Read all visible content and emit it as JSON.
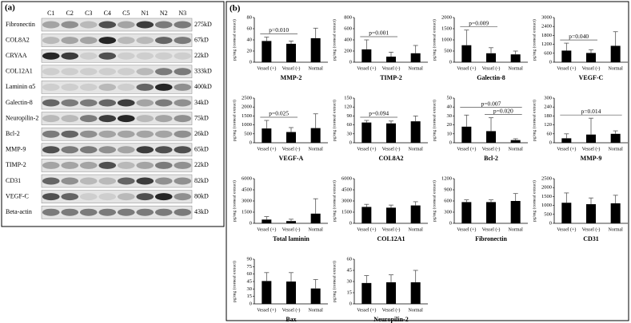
{
  "panels": {
    "a": "(a)",
    "b": "(b)"
  },
  "blot": {
    "lanes": [
      "C1",
      "C2",
      "C3",
      "C4",
      "C5",
      "N1",
      "N2",
      "N3"
    ],
    "rows": [
      {
        "name": "Fibronectin",
        "size": "275kD"
      },
      {
        "name": "COL8A2",
        "size": "67kD"
      },
      {
        "name": "CRYAA",
        "size": "22kD"
      },
      {
        "name": "COL12A1",
        "size": "333kD"
      },
      {
        "name": "Laminin α5",
        "size": "400kD"
      },
      {
        "name": "Galectin-8",
        "size": "34kD"
      },
      {
        "name": "Neuropilin-2",
        "size": "75kD"
      },
      {
        "name": "Bcl-2",
        "size": "26kD"
      },
      {
        "name": "MMP-9",
        "size": "65kD"
      },
      {
        "name": "TIMP-2",
        "size": "22kD"
      },
      {
        "name": "CD31",
        "size": "82kD"
      },
      {
        "name": "VEGF-C",
        "size": "80kD"
      },
      {
        "name": "Beta-actin",
        "size": "43kD"
      }
    ]
  },
  "chart_data": [
    {
      "type": "bar",
      "title": "MMP-2",
      "y_label": "pg/mg (corneal extract)",
      "categories": [
        "Vessel (+)",
        "Vessel (-)",
        "Normal"
      ],
      "values": [
        38,
        33,
        43
      ],
      "errors": [
        7,
        5,
        18
      ],
      "color": "#000000",
      "ylim": [
        0,
        80
      ],
      "yticks": [
        0,
        20,
        40,
        60,
        80
      ],
      "annotations": [
        {
          "text": "p=0.010",
          "between": [
            "Vessel (+)",
            "Vessel (-)"
          ]
        }
      ]
    },
    {
      "type": "bar",
      "title": "TIMP-2",
      "y_label": "pg/mg (corneal extract)",
      "categories": [
        "Vessel (+)",
        "Vessel (-)",
        "Normal"
      ],
      "values": [
        230,
        100,
        160
      ],
      "errors": [
        170,
        80,
        140
      ],
      "color": "#000000",
      "ylim": [
        0,
        800
      ],
      "yticks": [
        0,
        200,
        400,
        600,
        800
      ],
      "annotations": [
        {
          "text": "p=0.001",
          "between": [
            "Vessel (+)",
            "Vessel (-)"
          ]
        }
      ]
    },
    {
      "type": "bar",
      "title": "Galectin-8",
      "y_label": "pg/mg (corneal extract)",
      "categories": [
        "Vessel (+)",
        "Vessel (-)",
        "Normal"
      ],
      "values": [
        760,
        400,
        350
      ],
      "errors": [
        680,
        250,
        150
      ],
      "color": "#000000",
      "ylim": [
        0,
        2000
      ],
      "yticks": [
        0,
        500,
        1000,
        1500,
        2000
      ],
      "annotations": [
        {
          "text": "p=0.009",
          "between": [
            "Vessel (+)",
            "Vessel (-)"
          ]
        }
      ]
    },
    {
      "type": "bar",
      "title": "VEGF-C",
      "y_label": "pg/mg (corneal extract)",
      "categories": [
        "Vessel (+)",
        "Vessel (-)",
        "Normal"
      ],
      "values": [
        780,
        620,
        1100
      ],
      "errors": [
        500,
        220,
        950
      ],
      "color": "#000000",
      "ylim": [
        0,
        3000
      ],
      "yticks": [
        0,
        600,
        1200,
        1800,
        2400,
        3000
      ],
      "annotations": [
        {
          "text": "p=0.040",
          "between": [
            "Vessel (+)",
            "Vessel (-)"
          ]
        }
      ]
    },
    {
      "type": "bar",
      "title": "VEGF-A",
      "y_label": "pg/mg (corneal extract)",
      "categories": [
        "Vessel (+)",
        "Vessel (-)",
        "Normal"
      ],
      "values": [
        800,
        600,
        820
      ],
      "errors": [
        450,
        250,
        800
      ],
      "color": "#000000",
      "ylim": [
        0,
        2500
      ],
      "yticks": [
        0,
        500,
        1000,
        1500,
        2000,
        2500
      ],
      "annotations": [
        {
          "text": "p=0.025",
          "between": [
            "Vessel (+)",
            "Vessel (-)"
          ]
        }
      ]
    },
    {
      "type": "bar",
      "title": "COL8A2",
      "y_label": "pg/mg (corneal extract)",
      "categories": [
        "Vessel (+)",
        "Vessel (-)",
        "Normal"
      ],
      "values": [
        68,
        65,
        72
      ],
      "errors": [
        7,
        8,
        18
      ],
      "color": "#000000",
      "ylim": [
        0,
        150
      ],
      "yticks": [
        0,
        30,
        60,
        90,
        120,
        150
      ],
      "annotations": [
        {
          "text": "p=0.094",
          "between": [
            "Vessel (+)",
            "Vessel (-)"
          ]
        }
      ]
    },
    {
      "type": "bar",
      "title": "Bcl-2",
      "y_label": "pg/mg (corneal extract)",
      "categories": [
        "Vessel (+)",
        "Vessel (-)",
        "Normal"
      ],
      "values": [
        18,
        13,
        3
      ],
      "errors": [
        13,
        15,
        1.5
      ],
      "color": "#000000",
      "ylim": [
        0,
        50
      ],
      "yticks": [
        0,
        10,
        20,
        30,
        40,
        50
      ],
      "annotations": [
        {
          "text": "p=0.007",
          "between": [
            "Vessel (+)",
            "Normal"
          ]
        },
        {
          "text": "p=0.020",
          "between": [
            "Vessel (-)",
            "Normal"
          ]
        }
      ]
    },
    {
      "type": "bar",
      "title": "MMP-9",
      "y_label": "pg/mg (corneal extract)",
      "categories": [
        "Vessel (+)",
        "Vessel (-)",
        "Normal"
      ],
      "values": [
        30,
        55,
        60
      ],
      "errors": [
        30,
        110,
        20
      ],
      "color": "#000000",
      "ylim": [
        0,
        300
      ],
      "yticks": [
        0,
        60,
        120,
        180,
        240,
        300
      ],
      "annotations": [
        {
          "text": "p=0.014",
          "between": [
            "Vessel (+)",
            "Normal"
          ]
        }
      ]
    },
    {
      "type": "bar",
      "title": "Total laminin",
      "y_label": "pg/mg (corneal extract)",
      "categories": [
        "Vessel (+)",
        "Vessel (-)",
        "Normal"
      ],
      "values": [
        500,
        300,
        1300
      ],
      "errors": [
        400,
        250,
        2000
      ],
      "color": "#000000",
      "ylim": [
        0,
        6000
      ],
      "yticks": [
        0,
        1500,
        3000,
        4500,
        6000
      ]
    },
    {
      "type": "bar",
      "title": "COL12A1",
      "y_label": "pg/mg (corneal extract)",
      "categories": [
        "Vessel (+)",
        "Vessel (-)",
        "Normal"
      ],
      "values": [
        2200,
        2100,
        2400
      ],
      "errors": [
        350,
        350,
        500
      ],
      "color": "#000000",
      "ylim": [
        0,
        6000
      ],
      "yticks": [
        0,
        1500,
        3000,
        4500,
        6000
      ]
    },
    {
      "type": "bar",
      "title": "Fibronectin",
      "y_label": "pg/mg (corneal extract)",
      "categories": [
        "Vessel (+)",
        "Vessel (-)",
        "Normal"
      ],
      "values": [
        570,
        570,
        600
      ],
      "errors": [
        60,
        60,
        200
      ],
      "color": "#000000",
      "ylim": [
        0,
        1200
      ],
      "yticks": [
        0,
        300,
        600,
        900,
        1200
      ]
    },
    {
      "type": "bar",
      "title": "CD31",
      "y_label": "pg/mg (corneal extract)",
      "categories": [
        "Vessel (+)",
        "Vessel (-)",
        "Normal"
      ],
      "values": [
        1150,
        1070,
        1120
      ],
      "errors": [
        550,
        350,
        450
      ],
      "color": "#000000",
      "ylim": [
        0,
        2500
      ],
      "yticks": [
        0,
        500,
        1000,
        1500,
        2000,
        2500
      ]
    },
    {
      "type": "bar",
      "title": "Bax",
      "y_label": "pg/mg (corneal extract)",
      "categories": [
        "Vessel (+)",
        "Vessel (-)",
        "Normal"
      ],
      "values": [
        46,
        45,
        31
      ],
      "errors": [
        17,
        18,
        18
      ],
      "color": "#000000",
      "ylim": [
        0,
        90
      ],
      "yticks": [
        0,
        15,
        30,
        45,
        60,
        75,
        90
      ]
    },
    {
      "type": "bar",
      "title": "Neuropilin-2",
      "y_label": "pg/mg (corneal extract)",
      "categories": [
        "Vessel (+)",
        "Vessel (-)",
        "Normal"
      ],
      "values": [
        28,
        29,
        29
      ],
      "errors": [
        10,
        10,
        16
      ],
      "color": "#000000",
      "ylim": [
        0,
        60
      ],
      "yticks": [
        0,
        15,
        30,
        45,
        60
      ]
    }
  ]
}
